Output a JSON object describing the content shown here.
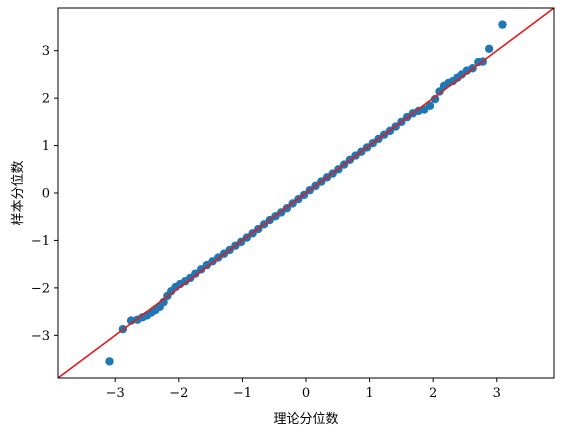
{
  "chart_data": {
    "type": "scatter",
    "title": "",
    "xlabel": "理论分位数",
    "ylabel": "样本分位数",
    "xlim": [
      -3.9,
      3.9
    ],
    "ylim": [
      -3.9,
      3.9
    ],
    "xticks": [
      -3,
      -2,
      -1,
      0,
      1,
      2,
      3
    ],
    "yticks": [
      -3,
      -2,
      -1,
      0,
      1,
      2,
      3
    ],
    "xtick_labels": [
      "−3",
      "−2",
      "−1",
      "0",
      "1",
      "2",
      "3"
    ],
    "ytick_labels": [
      "−3",
      "−2",
      "−1",
      "0",
      "1",
      "2",
      "3"
    ],
    "grid": false,
    "reference_line": {
      "slope": 1,
      "intercept": 0,
      "color": "#e41a1c"
    },
    "series": [
      {
        "color": "#1f77b4",
        "points": [
          [
            -3.09,
            -3.55
          ],
          [
            -2.88,
            -2.87
          ],
          [
            -2.75,
            -2.69
          ],
          [
            -2.65,
            -2.67
          ],
          [
            -2.57,
            -2.62
          ],
          [
            -2.5,
            -2.58
          ],
          [
            -2.43,
            -2.52
          ],
          [
            -2.37,
            -2.47
          ],
          [
            -2.3,
            -2.4
          ],
          [
            -2.24,
            -2.3
          ],
          [
            -2.18,
            -2.17
          ],
          [
            -2.12,
            -2.07
          ],
          [
            -2.05,
            -1.98
          ],
          [
            -1.98,
            -1.92
          ],
          [
            -1.9,
            -1.86
          ],
          [
            -1.82,
            -1.79
          ],
          [
            -1.74,
            -1.7
          ],
          [
            -1.65,
            -1.61
          ],
          [
            -1.56,
            -1.52
          ],
          [
            -1.47,
            -1.44
          ],
          [
            -1.38,
            -1.36
          ],
          [
            -1.29,
            -1.28
          ],
          [
            -1.2,
            -1.2
          ],
          [
            -1.11,
            -1.11
          ],
          [
            -1.02,
            -1.03
          ],
          [
            -0.93,
            -0.94
          ],
          [
            -0.84,
            -0.85
          ],
          [
            -0.75,
            -0.76
          ],
          [
            -0.66,
            -0.66
          ],
          [
            -0.57,
            -0.57
          ],
          [
            -0.48,
            -0.49
          ],
          [
            -0.39,
            -0.41
          ],
          [
            -0.3,
            -0.32
          ],
          [
            -0.21,
            -0.22
          ],
          [
            -0.12,
            -0.13
          ],
          [
            -0.03,
            -0.04
          ],
          [
            0.06,
            0.06
          ],
          [
            0.15,
            0.15
          ],
          [
            0.24,
            0.24
          ],
          [
            0.33,
            0.33
          ],
          [
            0.42,
            0.41
          ],
          [
            0.51,
            0.5
          ],
          [
            0.6,
            0.6
          ],
          [
            0.69,
            0.7
          ],
          [
            0.78,
            0.79
          ],
          [
            0.87,
            0.87
          ],
          [
            0.96,
            0.96
          ],
          [
            1.05,
            1.05
          ],
          [
            1.14,
            1.14
          ],
          [
            1.23,
            1.23
          ],
          [
            1.32,
            1.31
          ],
          [
            1.41,
            1.4
          ],
          [
            1.5,
            1.5
          ],
          [
            1.59,
            1.6
          ],
          [
            1.68,
            1.68
          ],
          [
            1.77,
            1.73
          ],
          [
            1.86,
            1.76
          ],
          [
            1.95,
            1.84
          ],
          [
            2.03,
            1.98
          ],
          [
            2.1,
            2.14
          ],
          [
            2.17,
            2.26
          ],
          [
            2.24,
            2.32
          ],
          [
            2.31,
            2.36
          ],
          [
            2.38,
            2.43
          ],
          [
            2.45,
            2.5
          ],
          [
            2.53,
            2.58
          ],
          [
            2.62,
            2.63
          ],
          [
            2.71,
            2.76
          ],
          [
            2.78,
            2.77
          ],
          [
            2.88,
            3.04
          ],
          [
            3.09,
            3.55
          ]
        ]
      }
    ]
  }
}
